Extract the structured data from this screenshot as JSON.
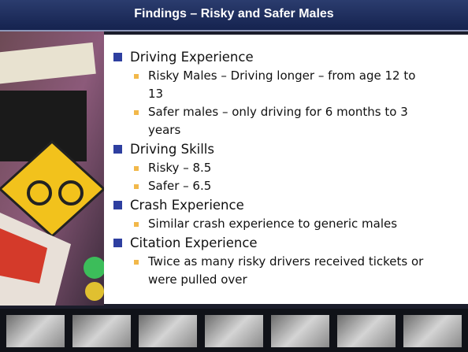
{
  "header": {
    "title": "Findings – Risky and Safer Males"
  },
  "sections": [
    {
      "heading": "Driving Experience",
      "items": [
        "Risky Males – Driving longer – from age 12 to 13",
        "Safer males – only driving for 6 months to 3 years"
      ]
    },
    {
      "heading": "Driving Skills",
      "items": [
        "Risky – 8.5",
        "Safer – 6.5"
      ]
    },
    {
      "heading": "Crash Experience",
      "items": [
        "Similar crash experience to generic males"
      ]
    },
    {
      "heading": "Citation Experience",
      "items": [
        "Twice as many risky drivers received tickets or were pulled over"
      ]
    }
  ]
}
